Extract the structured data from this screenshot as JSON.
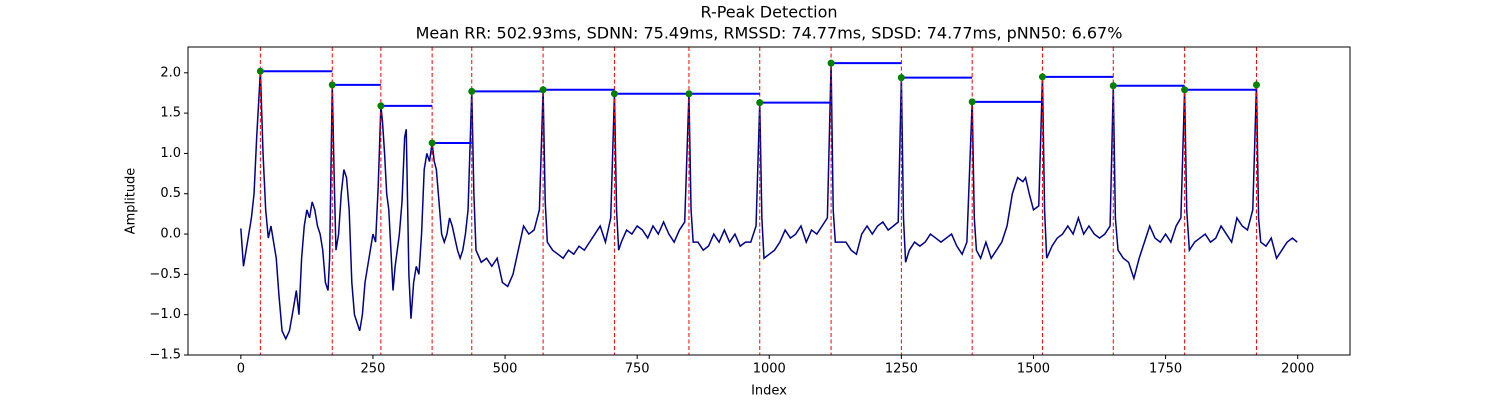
{
  "chart_data": {
    "type": "line",
    "title": "R-Peak Detection",
    "subtitle": "Mean RR: 502.93ms, SDNN: 75.49ms, RMSSD: 74.77ms, SDSD: 74.77ms, pNN50: 6.67%",
    "x_label": "Index",
    "y_label": "Amplitude",
    "xlim": [
      -100,
      2099
    ],
    "ylim": [
      -1.5,
      2.32
    ],
    "xticks": [
      0,
      250,
      500,
      750,
      1000,
      1250,
      1500,
      1750,
      2000
    ],
    "yticks": [
      {
        "value": -1.5,
        "label": "−1.5"
      },
      {
        "value": -1,
        "label": "−1.0"
      },
      {
        "value": -0.5,
        "label": "−0.5"
      },
      {
        "value": 0,
        "label": "0.0"
      },
      0.5,
      {
        "value": 1,
        "label": "1.0"
      },
      1.5,
      {
        "value": 2,
        "label": "2.0"
      }
    ],
    "signal": {
      "color": "#00008b",
      "x": [
        0,
        5,
        10,
        15,
        20,
        25,
        30,
        37,
        42,
        47,
        52,
        57,
        62,
        67,
        72,
        78,
        85,
        92,
        100,
        105,
        110,
        115,
        120,
        125,
        130,
        135,
        140,
        145,
        150,
        155,
        160,
        165,
        168,
        173,
        177,
        180,
        185,
        190,
        195,
        200,
        205,
        210,
        215,
        220,
        225,
        230,
        235,
        240,
        245,
        250,
        255,
        260,
        265,
        268,
        272,
        276,
        280,
        284,
        288,
        292,
        296,
        300,
        305,
        310,
        313,
        318,
        322,
        327,
        332,
        337,
        342,
        347,
        352,
        357,
        362,
        366,
        370,
        375,
        380,
        385,
        390,
        395,
        400,
        405,
        410,
        415,
        420,
        425,
        430,
        437,
        441,
        445,
        455,
        465,
        475,
        485,
        495,
        505,
        515,
        525,
        535,
        545,
        555,
        565,
        572,
        576,
        580,
        590,
        600,
        610,
        620,
        630,
        640,
        650,
        660,
        670,
        680,
        690,
        700,
        707,
        711,
        715,
        720,
        730,
        740,
        750,
        760,
        770,
        780,
        790,
        800,
        810,
        820,
        830,
        840,
        848,
        852,
        856,
        865,
        875,
        885,
        895,
        905,
        915,
        925,
        935,
        945,
        955,
        965,
        975,
        982,
        986,
        990,
        1000,
        1010,
        1020,
        1030,
        1040,
        1050,
        1060,
        1070,
        1080,
        1090,
        1100,
        1110,
        1117,
        1121,
        1125,
        1135,
        1145,
        1155,
        1165,
        1175,
        1185,
        1195,
        1205,
        1215,
        1225,
        1235,
        1244,
        1250,
        1254,
        1258,
        1265,
        1275,
        1285,
        1295,
        1305,
        1315,
        1325,
        1335,
        1345,
        1355,
        1365,
        1374,
        1384,
        1388,
        1392,
        1400,
        1410,
        1420,
        1430,
        1440,
        1450,
        1460,
        1470,
        1480,
        1485,
        1492,
        1500,
        1510,
        1517,
        1521,
        1525,
        1535,
        1545,
        1555,
        1565,
        1575,
        1585,
        1595,
        1605,
        1615,
        1625,
        1635,
        1645,
        1651,
        1655,
        1660,
        1670,
        1680,
        1690,
        1700,
        1710,
        1720,
        1730,
        1740,
        1750,
        1760,
        1770,
        1779,
        1786,
        1790,
        1795,
        1805,
        1815,
        1825,
        1835,
        1845,
        1855,
        1865,
        1875,
        1885,
        1895,
        1905,
        1915,
        1922,
        1926,
        1930,
        1940,
        1950,
        1960,
        1970,
        1980,
        1990,
        1999
      ],
      "values": [
        0.07,
        -0.4,
        -0.2,
        0.0,
        0.2,
        0.5,
        1.2,
        2.02,
        1.0,
        0.3,
        -0.05,
        0.1,
        -0.1,
        -0.3,
        -0.75,
        -1.2,
        -1.3,
        -1.2,
        -0.9,
        -0.7,
        -1.0,
        -0.3,
        0.1,
        0.3,
        0.2,
        0.4,
        0.3,
        0.1,
        0.0,
        -0.2,
        -0.6,
        -0.7,
        -0.3,
        1.85,
        0.6,
        -0.2,
        0.0,
        0.5,
        0.8,
        0.7,
        0.3,
        -0.6,
        -1.0,
        -1.1,
        -1.2,
        -1.0,
        -0.6,
        -0.4,
        -0.2,
        0.0,
        -0.1,
        0.6,
        1.59,
        1.4,
        1.0,
        0.5,
        0.3,
        -0.2,
        -0.7,
        -0.4,
        -0.2,
        0.0,
        0.4,
        1.2,
        1.3,
        -0.5,
        -1.05,
        -0.6,
        -0.4,
        -0.5,
        0.0,
        0.8,
        1.0,
        0.9,
        1.13,
        0.9,
        0.8,
        0.4,
        0.0,
        -0.1,
        0.0,
        0.2,
        0.1,
        -0.05,
        -0.2,
        -0.3,
        -0.2,
        0.0,
        0.3,
        1.77,
        0.5,
        -0.2,
        -0.35,
        -0.3,
        -0.4,
        -0.3,
        -0.6,
        -0.65,
        -0.5,
        -0.2,
        0.1,
        0.0,
        0.05,
        0.3,
        1.79,
        0.4,
        -0.1,
        -0.2,
        -0.25,
        -0.3,
        -0.2,
        -0.25,
        -0.15,
        -0.2,
        -0.1,
        0.0,
        0.1,
        -0.1,
        0.2,
        1.74,
        0.3,
        -0.2,
        -0.1,
        0.05,
        0.0,
        0.1,
        0.05,
        -0.05,
        0.1,
        0.0,
        0.15,
        0.0,
        -0.1,
        0.05,
        0.15,
        1.74,
        0.3,
        -0.1,
        -0.1,
        -0.2,
        -0.15,
        0.0,
        -0.1,
        0.05,
        -0.1,
        0.0,
        -0.15,
        -0.1,
        -0.1,
        0.1,
        1.63,
        0.2,
        -0.3,
        -0.25,
        -0.2,
        -0.1,
        0.05,
        -0.05,
        0.0,
        0.1,
        -0.1,
        0.05,
        0.0,
        0.1,
        0.2,
        2.12,
        0.3,
        -0.1,
        -0.1,
        -0.1,
        -0.2,
        -0.25,
        0.0,
        0.1,
        0.0,
        0.1,
        0.15,
        0.05,
        0.1,
        0.15,
        1.94,
        0.2,
        -0.35,
        -0.2,
        -0.1,
        -0.15,
        -0.1,
        0.0,
        -0.05,
        -0.1,
        -0.05,
        0.0,
        -0.15,
        -0.25,
        -0.1,
        1.64,
        0.2,
        -0.2,
        -0.3,
        -0.1,
        -0.3,
        -0.2,
        -0.1,
        0.1,
        0.5,
        0.7,
        0.65,
        0.7,
        0.5,
        0.3,
        0.35,
        1.95,
        0.3,
        -0.3,
        -0.15,
        -0.05,
        0.0,
        0.1,
        0.0,
        0.2,
        0.0,
        0.1,
        0.0,
        -0.05,
        0.0,
        0.1,
        1.84,
        0.2,
        -0.2,
        -0.3,
        -0.35,
        -0.55,
        -0.3,
        -0.1,
        0.1,
        -0.05,
        -0.1,
        0.0,
        -0.1,
        0.1,
        0.2,
        1.79,
        0.3,
        -0.2,
        -0.1,
        -0.05,
        0.0,
        -0.1,
        -0.05,
        0.1,
        0.0,
        -0.1,
        0.2,
        0.1,
        0.05,
        0.3,
        1.85,
        0.2,
        -0.1,
        -0.15,
        -0.05,
        -0.3,
        -0.2,
        -0.1,
        -0.05,
        -0.1
      ]
    },
    "peaks": {
      "color": "green",
      "line_color": "red",
      "interval_color": "blue",
      "x": [
        37,
        173,
        265,
        362,
        437,
        572,
        707,
        848,
        982,
        1117,
        1250,
        1384,
        1517,
        1651,
        1786,
        1922
      ],
      "values": [
        2.02,
        1.85,
        1.59,
        1.13,
        1.77,
        1.79,
        1.74,
        1.74,
        1.63,
        2.12,
        1.94,
        1.64,
        1.95,
        1.84,
        1.79,
        1.85
      ]
    }
  }
}
